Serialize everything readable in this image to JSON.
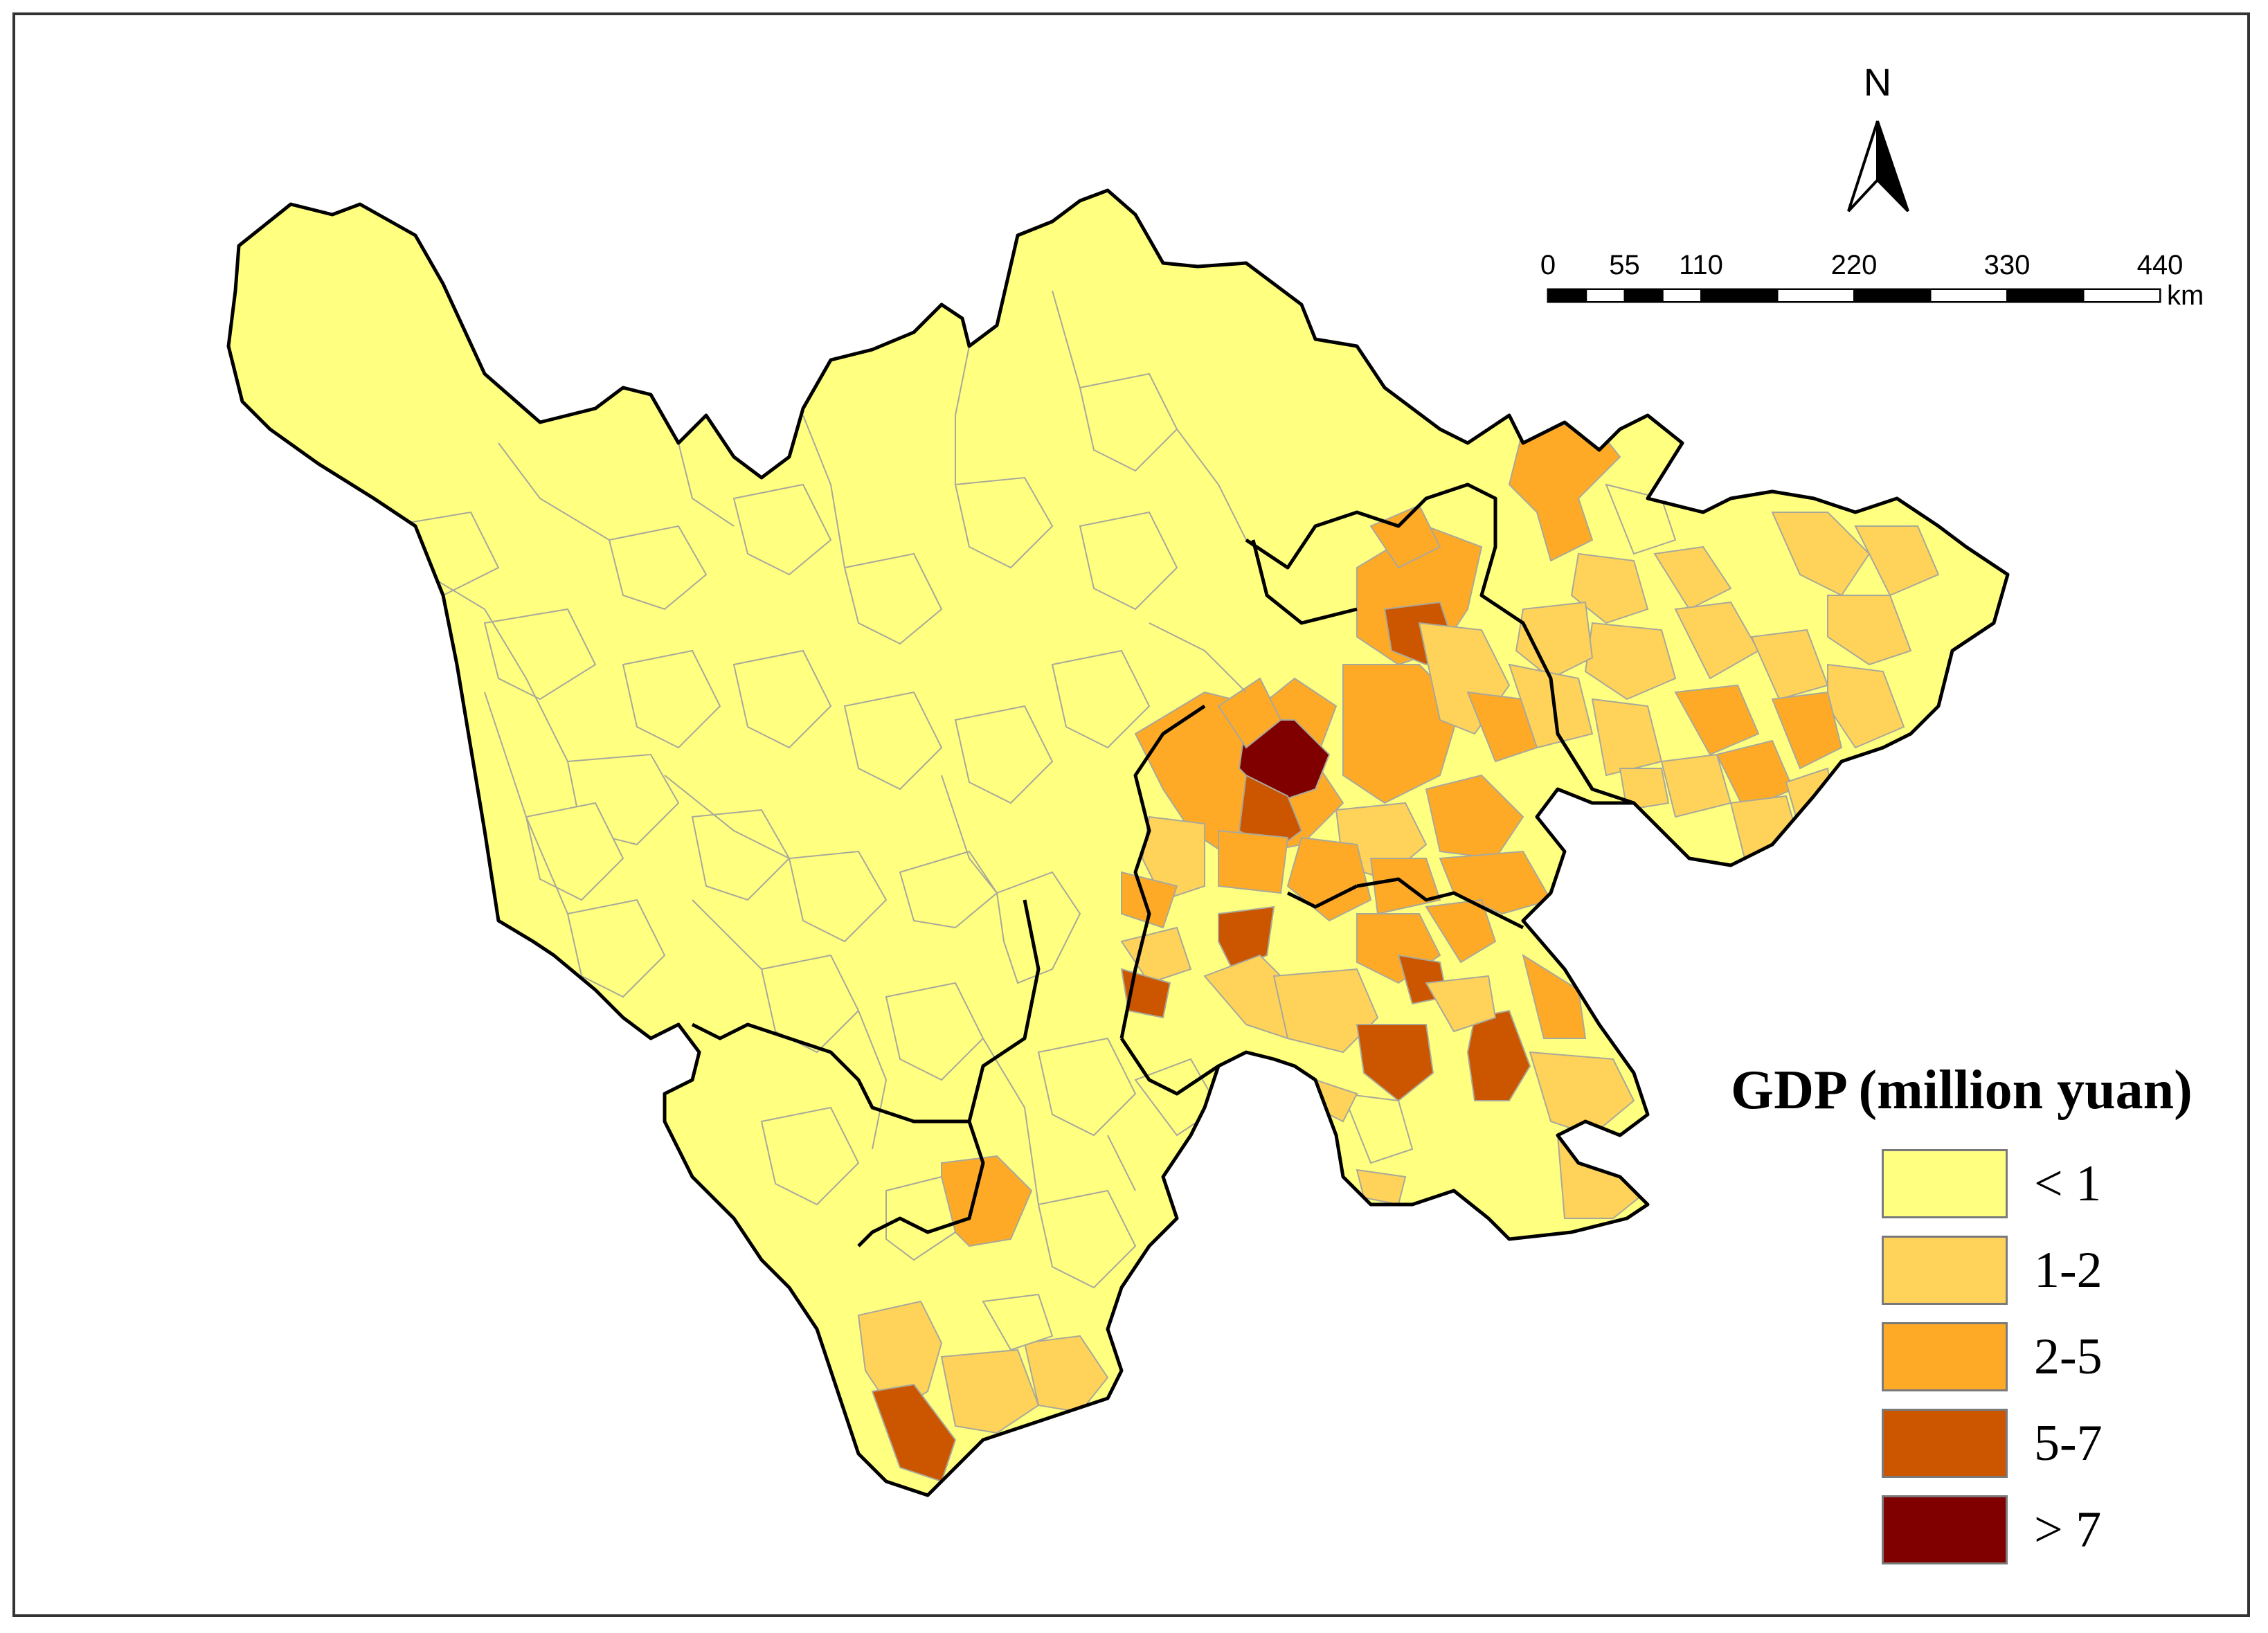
{
  "legend": {
    "title": "GDP (million yuan)",
    "classes": [
      {
        "label": "< 1",
        "color": "#FFFF80"
      },
      {
        "label": "1-2",
        "color": "#FFD35A"
      },
      {
        "label": "2-5",
        "color": "#FFAA27"
      },
      {
        "label": "5-7",
        "color": "#CC5500"
      },
      {
        "label": "> 7",
        "color": "#800000"
      }
    ]
  },
  "north_arrow": {
    "label": "N",
    "icon": "north-arrow-icon"
  },
  "scale_bar": {
    "ticks": [
      "0",
      "55",
      "110",
      "220",
      "330",
      "440"
    ],
    "unit": "km"
  },
  "colors": {
    "district_border": "#a8a89a",
    "prefecture_border": "#000000",
    "frame": "#333333"
  }
}
